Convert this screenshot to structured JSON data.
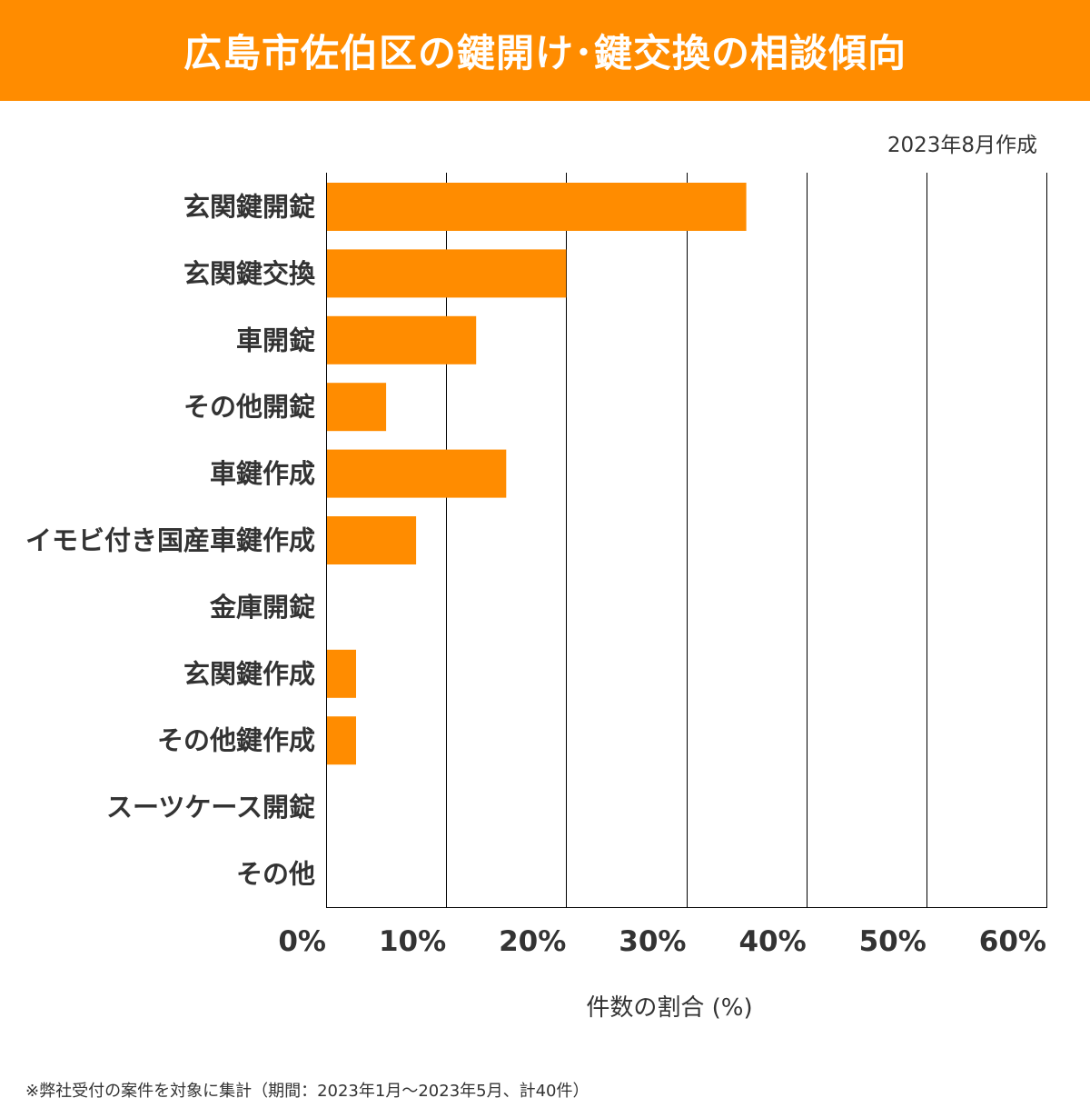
{
  "title": "広島市佐伯区の鍵開け･鍵交換の相談傾向",
  "created_note": "2023年8月作成",
  "footnote": "※弊社受付の案件を対象に集計（期間：2023年1月～2023年5月、計40件）",
  "colors": {
    "accent": "#FF8C00",
    "bar": "#FF8C00",
    "text": "#333333",
    "grid": "#000000"
  },
  "chart_data": {
    "type": "bar",
    "orientation": "horizontal",
    "title": "広島市佐伯区の鍵開け･鍵交換の相談傾向",
    "xlabel": "件数の割合 (%)",
    "ylabel": "",
    "categories": [
      "玄関鍵開錠",
      "玄関鍵交換",
      "車開錠",
      "その他開錠",
      "車鍵作成",
      "イモビ付き国産車鍵作成",
      "金庫開錠",
      "玄関鍵作成",
      "その他鍵作成",
      "スーツケース開錠",
      "その他"
    ],
    "values": [
      35,
      20,
      12.5,
      5,
      15,
      7.5,
      0,
      2.5,
      2.5,
      0,
      0
    ],
    "xlim": [
      0,
      60
    ],
    "xticks": [
      0,
      10,
      20,
      30,
      40,
      50,
      60
    ],
    "xtick_labels": [
      "0%",
      "10%",
      "20%",
      "30%",
      "40%",
      "50%",
      "60%"
    ],
    "grid": true,
    "legend": "none"
  }
}
